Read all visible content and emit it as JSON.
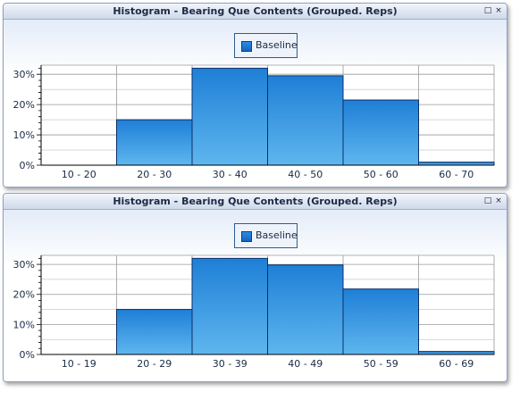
{
  "panels": [
    {
      "title": "Histogram - Bearing Que Contents (Grouped. Reps)",
      "legend": "Baseline",
      "window_buttons": {
        "restore": "□",
        "close": "×"
      },
      "chart_data": {
        "type": "bar",
        "categories": [
          "10 - 20",
          "20 - 30",
          "30 - 40",
          "40 - 50",
          "50 - 60",
          "60 - 70"
        ],
        "series": [
          {
            "name": "Baseline",
            "values": [
              0,
              15,
              32,
              29.5,
              21.5,
              1
            ]
          }
        ],
        "ylim": [
          0,
          33
        ],
        "yticks": [
          "0%",
          "10%",
          "20%",
          "30%"
        ],
        "grid": true,
        "legend_position": "top-center"
      }
    },
    {
      "title": "Histogram - Bearing Que Contents (Grouped. Reps)",
      "legend": "Baseline",
      "window_buttons": {
        "restore": "□",
        "close": "×"
      },
      "chart_data": {
        "type": "bar",
        "categories": [
          "10 - 19",
          "20 - 29",
          "30 - 39",
          "40 - 49",
          "50 - 59",
          "60 - 69"
        ],
        "series": [
          {
            "name": "Baseline",
            "values": [
              0,
              15,
              32,
              29.8,
              21.8,
              1
            ]
          }
        ],
        "ylim": [
          0,
          33
        ],
        "yticks": [
          "0%",
          "10%",
          "20%",
          "30%"
        ],
        "grid": true,
        "legend_position": "top-center"
      }
    }
  ],
  "colors": {
    "bar_top": "#1e7fd6",
    "bar_bottom": "#5fb6ee",
    "bar_border": "#0b2f6b",
    "grid": "#9a9a9a",
    "axis": "#000000"
  }
}
